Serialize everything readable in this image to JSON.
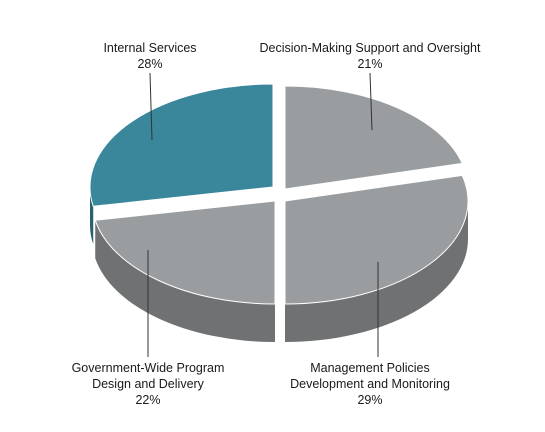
{
  "chart_data": {
    "type": "pie",
    "title": "",
    "slices": [
      {
        "label_lines": [
          "Decision-Making Support and Oversight"
        ],
        "value_text": "21%",
        "value": 21,
        "color": "#9a9da0"
      },
      {
        "label_lines": [
          "Management Policies",
          "Development and Monitoring"
        ],
        "value_text": "29%",
        "value": 29,
        "color": "#9a9da0"
      },
      {
        "label_lines": [
          "Government-Wide Program",
          "Design and Delivery"
        ],
        "value_text": "22%",
        "value": 22,
        "color": "#9a9da0"
      },
      {
        "label_lines": [
          "Internal Services"
        ],
        "value_text": "28%",
        "value": 28,
        "color": "#3a879c"
      }
    ]
  }
}
